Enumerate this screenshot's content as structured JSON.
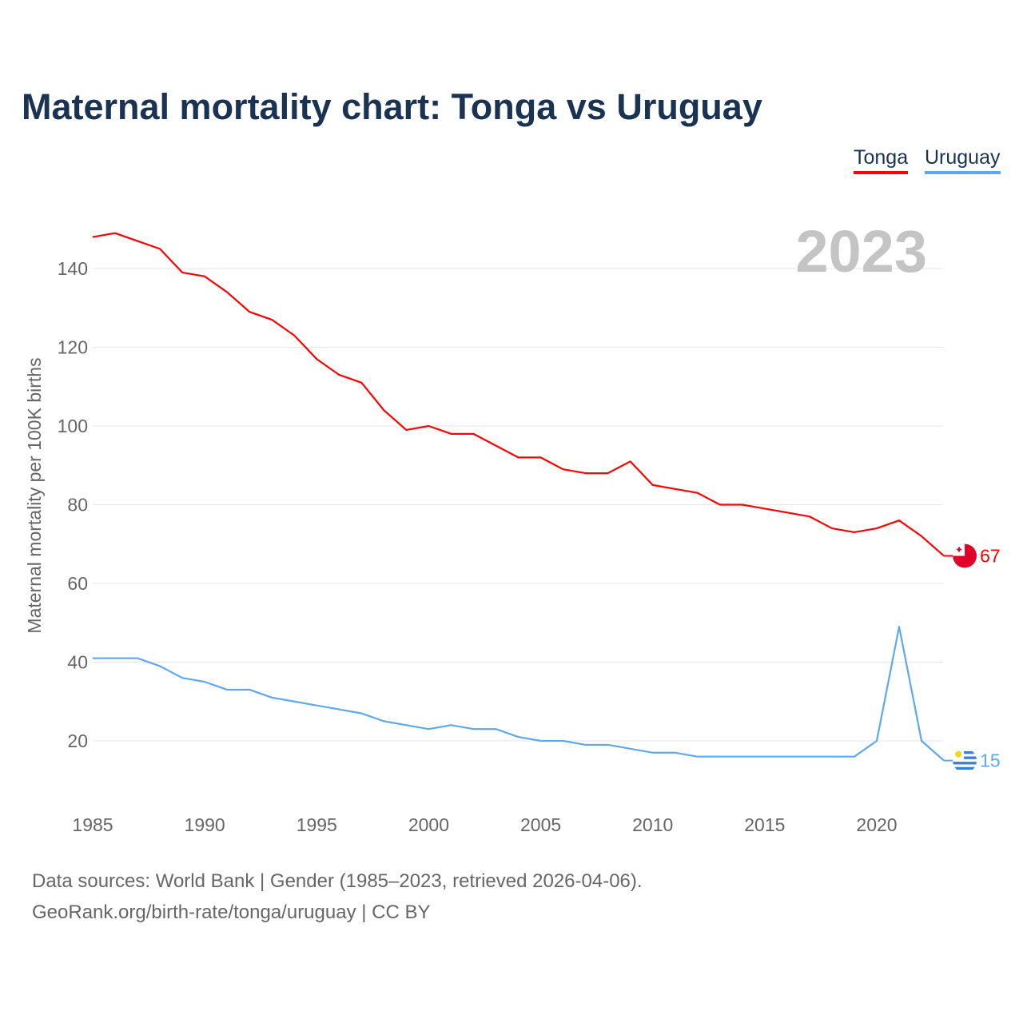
{
  "chart_data": {
    "type": "line",
    "title": "Maternal mortality chart: Tonga vs Uruguay",
    "xlabel": "",
    "ylabel": "Maternal mortality per 100K births",
    "xlim": [
      1985,
      2023
    ],
    "ylim": [
      5,
      155
    ],
    "x_ticks": [
      1985,
      1990,
      1995,
      2000,
      2005,
      2010,
      2015,
      2020
    ],
    "y_ticks": [
      20,
      40,
      60,
      80,
      100,
      120,
      140
    ],
    "grid": true,
    "legend_position": "top-right",
    "year_label": "2023",
    "x": [
      1985,
      1986,
      1987,
      1988,
      1989,
      1990,
      1991,
      1992,
      1993,
      1994,
      1995,
      1996,
      1997,
      1998,
      1999,
      2000,
      2001,
      2002,
      2003,
      2004,
      2005,
      2006,
      2007,
      2008,
      2009,
      2010,
      2011,
      2012,
      2013,
      2014,
      2015,
      2016,
      2017,
      2018,
      2019,
      2020,
      2021,
      2022,
      2023
    ],
    "series": [
      {
        "name": "Tonga",
        "color": "#ff0000",
        "end_label": "67",
        "values": [
          148,
          149,
          147,
          145,
          139,
          138,
          134,
          129,
          127,
          123,
          117,
          113,
          111,
          104,
          99,
          100,
          98,
          98,
          95,
          92,
          92,
          89,
          88,
          88,
          91,
          85,
          84,
          83,
          80,
          80,
          79,
          78,
          77,
          74,
          73,
          74,
          76,
          72,
          67
        ]
      },
      {
        "name": "Uruguay",
        "color": "#5ea8ee",
        "end_label": "15",
        "values": [
          41,
          41,
          41,
          39,
          36,
          35,
          33,
          33,
          31,
          30,
          29,
          28,
          27,
          25,
          24,
          23,
          24,
          23,
          23,
          21,
          20,
          20,
          19,
          19,
          18,
          17,
          17,
          16,
          16,
          16,
          16,
          16,
          16,
          16,
          16,
          20,
          49,
          20,
          15
        ]
      }
    ]
  },
  "footer": {
    "line1": "Data sources: World Bank | Gender (1985–2023, retrieved 2026-04-06).",
    "line2": "GeoRank.org/birth-rate/tonga/uruguay | CC BY"
  }
}
